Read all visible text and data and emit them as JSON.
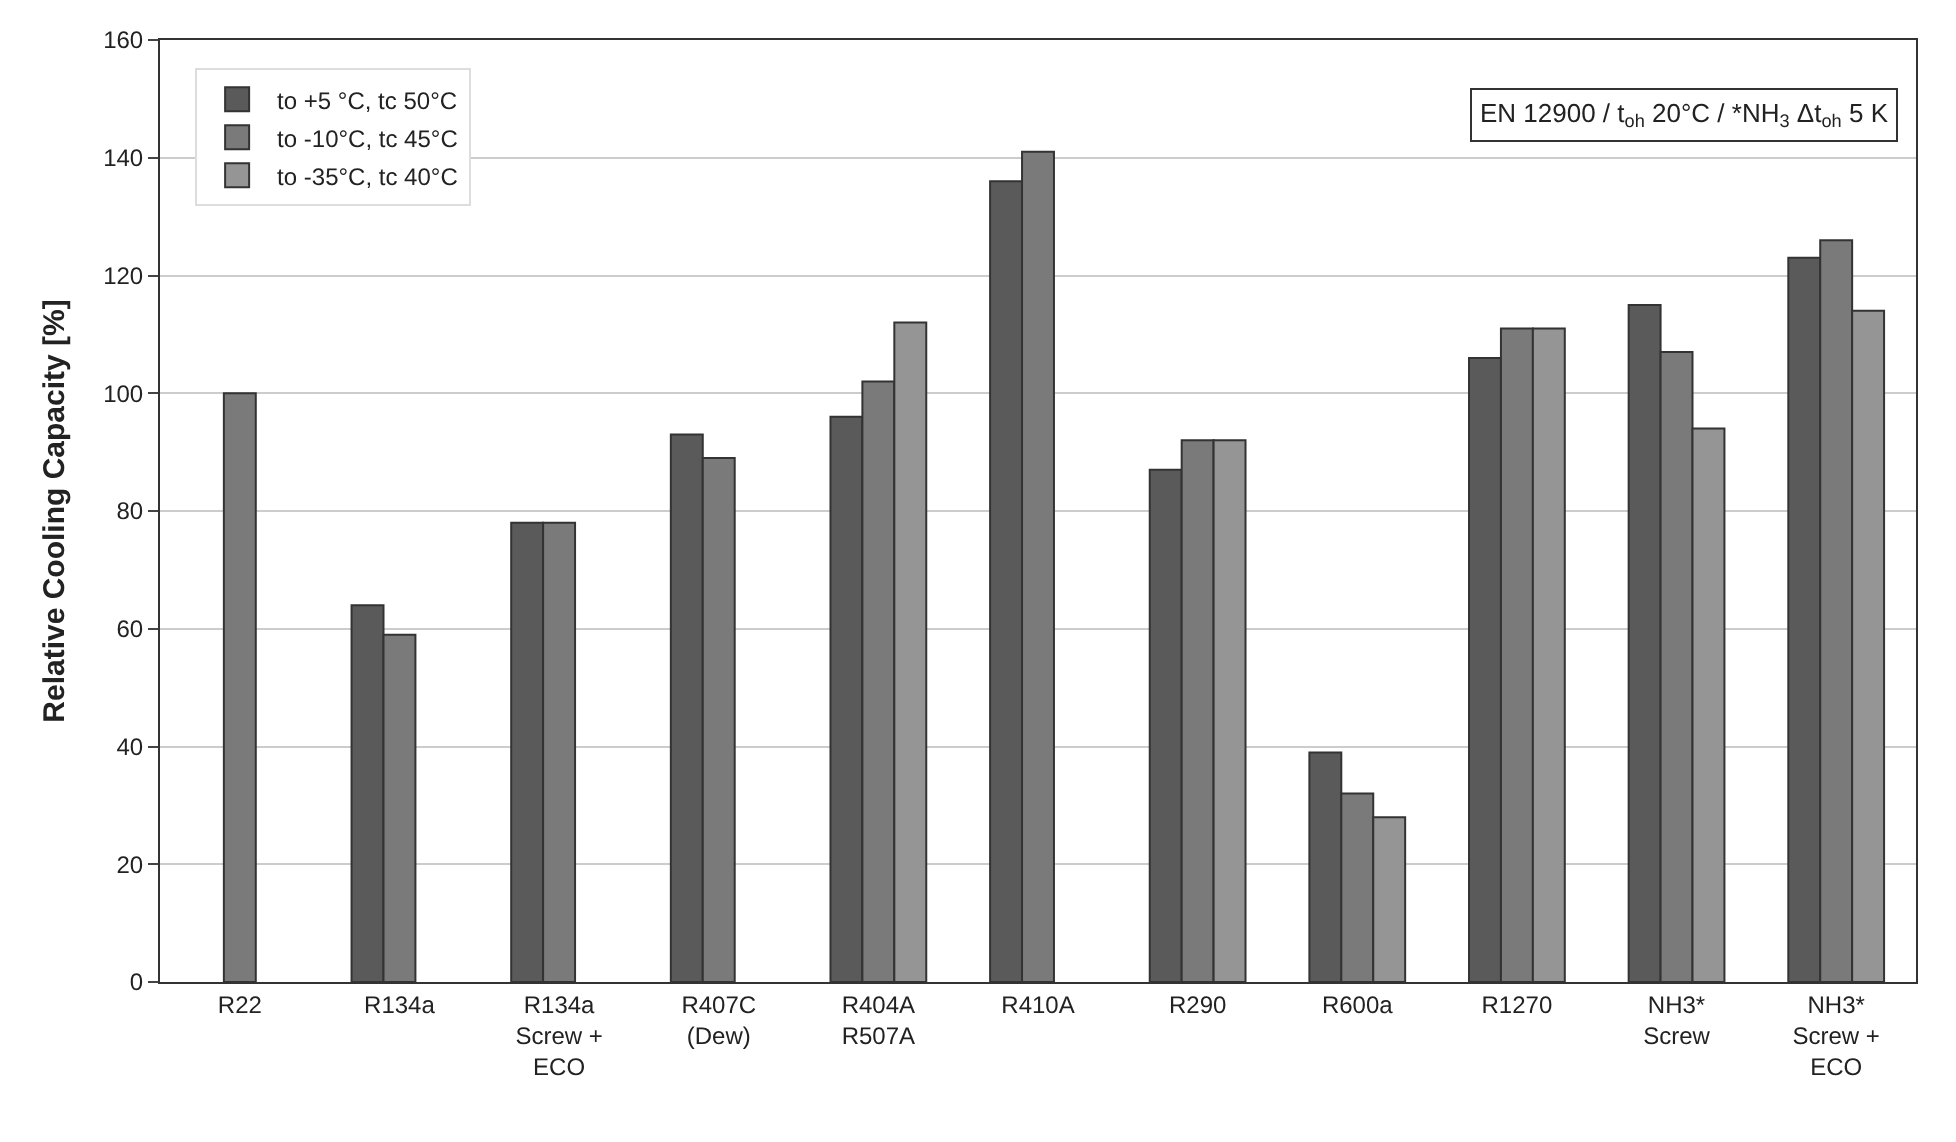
{
  "chart_data": {
    "type": "bar",
    "ylabel": "Relative Cooling Capacity [%]",
    "categories": [
      "R22",
      "R134a",
      "R134a\nScrew +\nECO",
      "R407C\n(Dew)",
      "R404A\nR507A",
      "R410A",
      "R290",
      "R600a",
      "R1270",
      "NH3*\nScrew",
      "NH3*\nScrew +\nECO"
    ],
    "series": [
      {
        "name": "to +5 °C, tc 50°C",
        "color": "#5a5a5a",
        "values": [
          null,
          64,
          78,
          93,
          96,
          136,
          87,
          39,
          106,
          115,
          123
        ]
      },
      {
        "name": "to -10°C, tc 45°C",
        "color": "#7a7a7a",
        "values": [
          100,
          59,
          78,
          89,
          102,
          141,
          92,
          32,
          111,
          107,
          126
        ]
      },
      {
        "name": "to -35°C, tc 40°C",
        "color": "#959595",
        "values": [
          null,
          null,
          null,
          null,
          112,
          null,
          92,
          28,
          111,
          94,
          114
        ]
      }
    ],
    "ylim": [
      0,
      160
    ],
    "yticks": [
      0,
      20,
      40,
      60,
      80,
      100,
      120,
      140,
      160
    ],
    "grid": "y",
    "legend": "top left",
    "annotations": [
      "EN 12900 / t$_{oh}$ 20°C / *NH$_{3}$ Δt$_{oh}$ 5 K"
    ]
  }
}
